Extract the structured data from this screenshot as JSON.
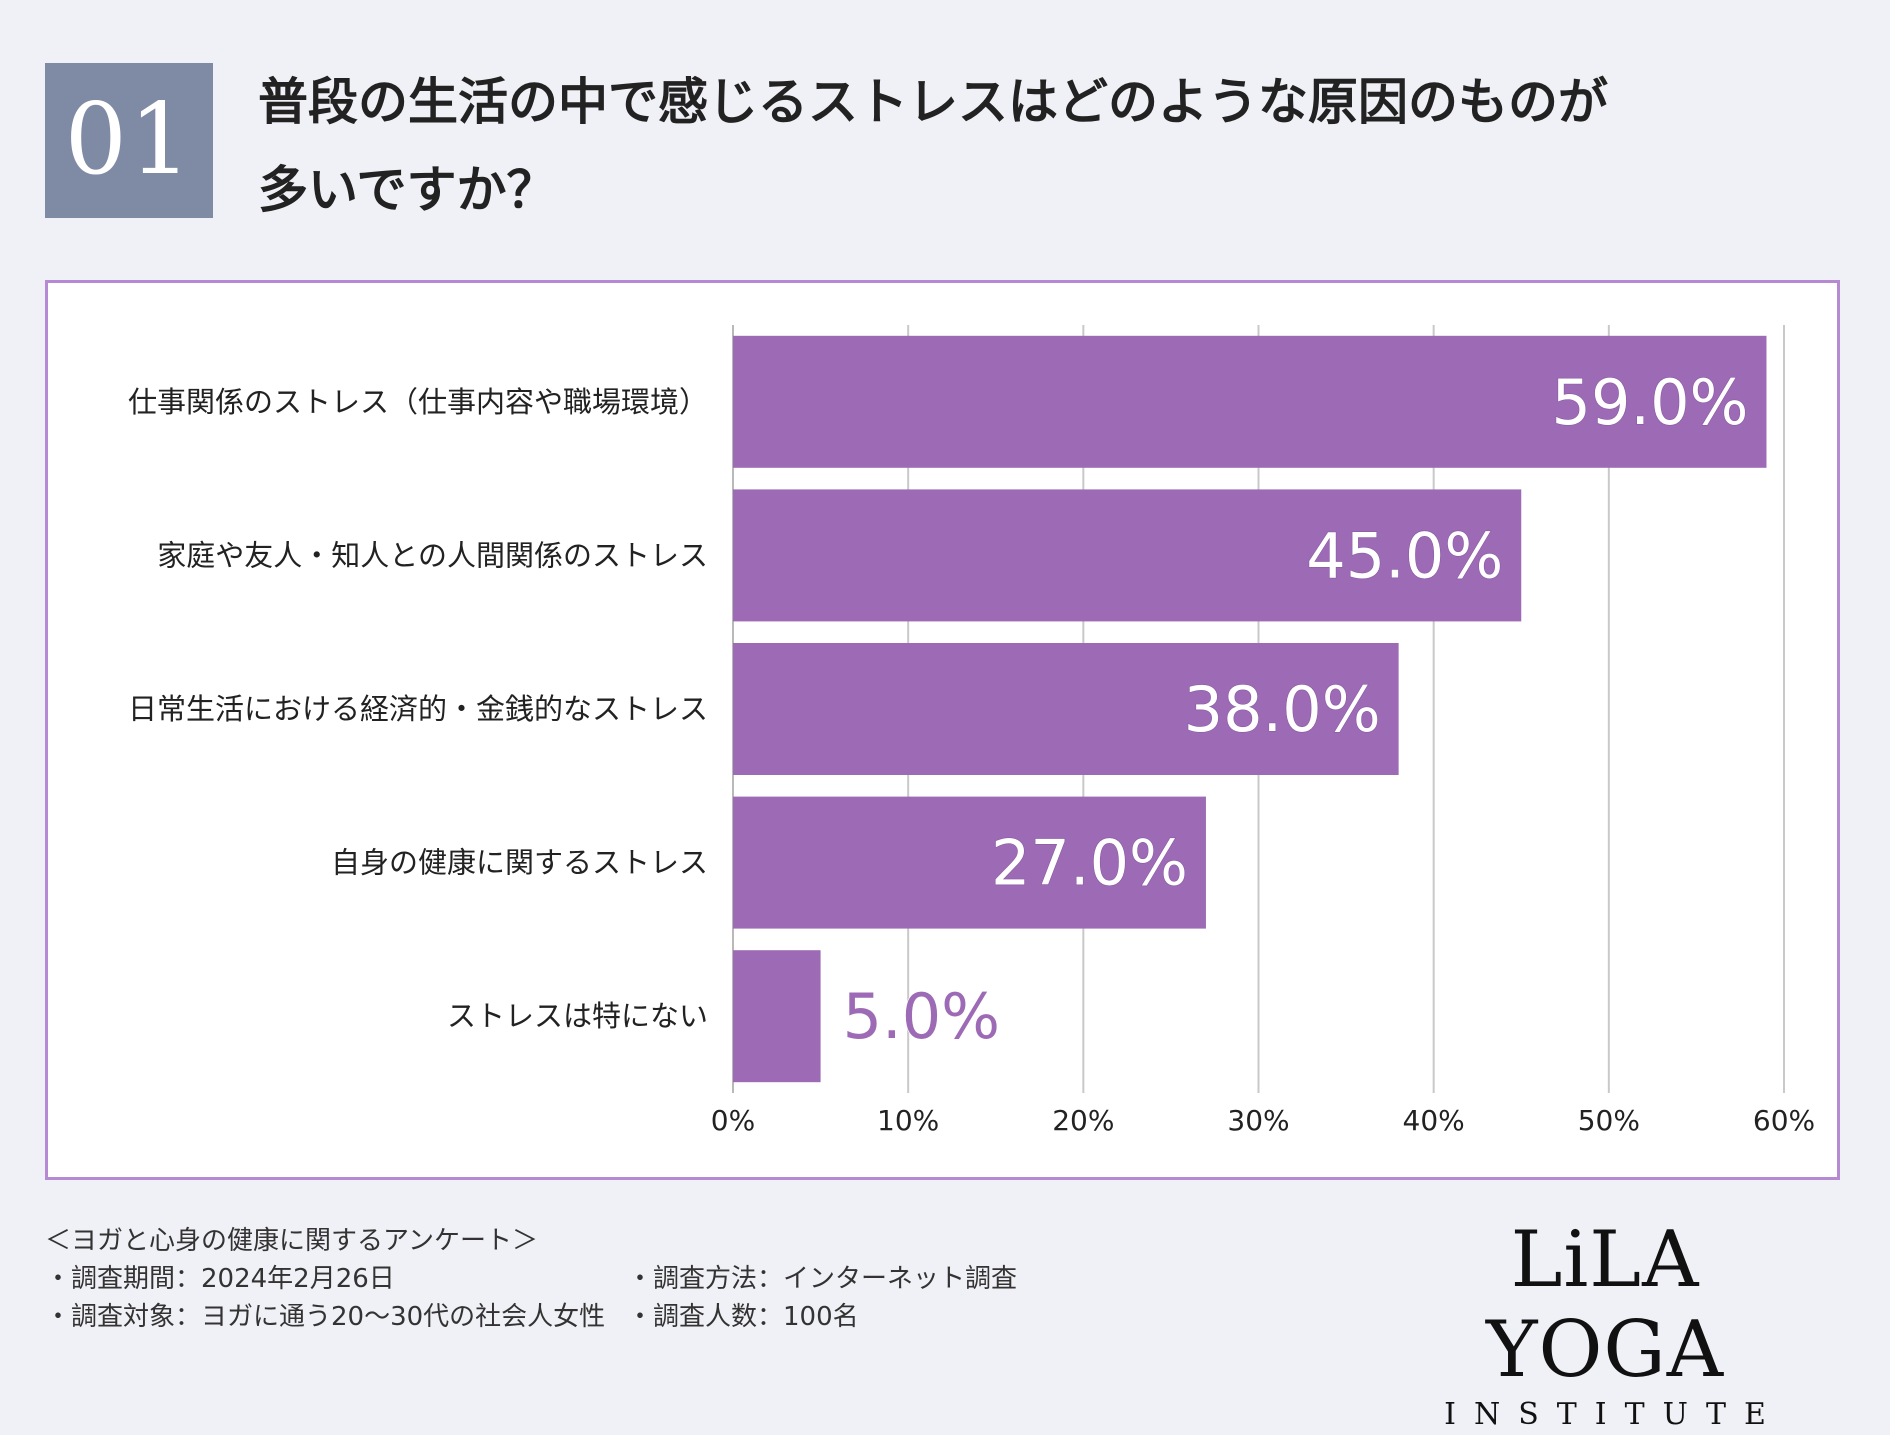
{
  "question": {
    "number": "01",
    "title_line1": "普段の生活の中で感じるストレスはどのような原因のものが",
    "title_line2": "多いですか？"
  },
  "chart_data": {
    "type": "bar",
    "orientation": "horizontal",
    "categories": [
      "仕事関係のストレス（仕事内容や職場環境）",
      "家庭や友人・知人との人間関係のストレス",
      "日常生活における経済的・金銭的なストレス",
      "自身の健康に関するストレス",
      "ストレスは特にない"
    ],
    "values": [
      59.0,
      45.0,
      38.0,
      27.0,
      5.0
    ],
    "value_labels": [
      "59.0%",
      "45.0%",
      "38.0%",
      "27.0%",
      "5.0%"
    ],
    "x_ticks": [
      "0%",
      "10%",
      "20%",
      "30%",
      "40%",
      "50%",
      "60%"
    ],
    "xlim": [
      0,
      60
    ],
    "grid": "vertical",
    "bar_color": "#9d6bb5",
    "title": "",
    "xlabel": "",
    "ylabel": ""
  },
  "footer": {
    "survey_name": "＜ヨガと心身の健康に関するアンケート＞",
    "period": "・調査期間：2024年2月26日",
    "target": "・調査対象：ヨガに通う20〜30代の社会人女性",
    "method": "・調査方法：インターネット調査",
    "count": "・調査人数：100名"
  },
  "logo": {
    "main": "LiLA YOGA",
    "sub": "INSTITUTE"
  }
}
